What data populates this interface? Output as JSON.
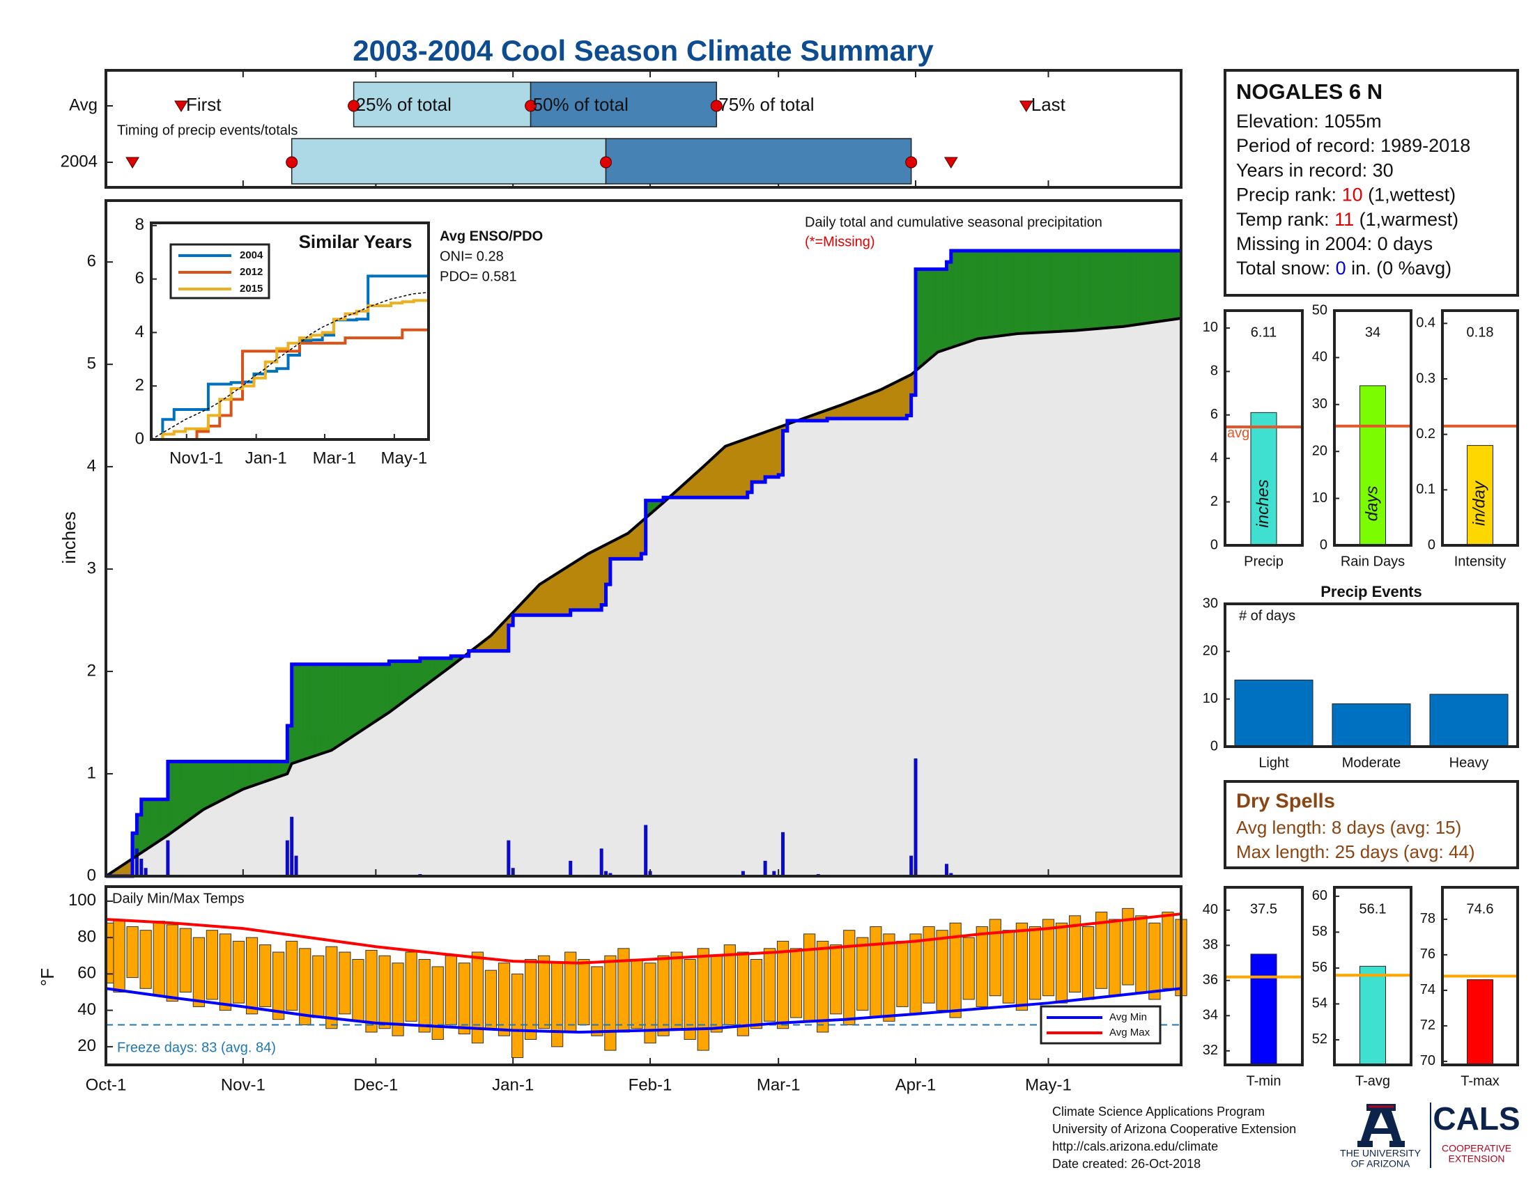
{
  "header": {
    "title": "2003-2004 Cool Season Climate Summary"
  },
  "chart_data": [
    {
      "type": "timing",
      "xlim": [
        0,
        243
      ],
      "note": "Timing of precip events/totals",
      "labels": [
        "First",
        "25% of total",
        "50% of total",
        "75% of total",
        "Last"
      ],
      "rows": [
        {
          "name": "Avg",
          "values": [
            17,
            56,
            96,
            138,
            208
          ]
        },
        {
          "name": "2004",
          "values": [
            6,
            42,
            113,
            182,
            191
          ]
        }
      ],
      "colors": [
        "#add8e6",
        "#4682b4"
      ],
      "marker_color": "#e00000"
    },
    {
      "type": "cumulative",
      "ylabel": "inches",
      "title": "Daily total and cumulative seasonal precipitation",
      "note": "(*=Missing)",
      "note_color": "#e00000",
      "xlim": [
        0,
        243
      ],
      "ylim": [
        0,
        6.6
      ],
      "yticks": [
        0,
        1,
        2,
        3,
        4,
        5,
        6
      ],
      "series": [
        {
          "color": "#0000ff",
          "step": true,
          "x": [
            0,
            6,
            7,
            8,
            14,
            41,
            42,
            64,
            71,
            78,
            82,
            91,
            92,
            105,
            112,
            113,
            114,
            121,
            122,
            126,
            145,
            146,
            149,
            152,
            153,
            154,
            163,
            181,
            182,
            183,
            190,
            191,
            243
          ],
          "values": [
            0,
            0.42,
            0.6,
            0.75,
            1.12,
            1.47,
            2.07,
            2.1,
            2.13,
            2.15,
            2.2,
            2.45,
            2.55,
            2.6,
            2.65,
            2.85,
            3.1,
            3.15,
            3.67,
            3.7,
            3.75,
            3.85,
            3.9,
            3.92,
            4.35,
            4.45,
            4.47,
            4.5,
            4.7,
            5.93,
            6.0,
            6.11,
            6.11
          ]
        },
        {
          "color": "#000000",
          "x": [
            0,
            7,
            14,
            22,
            31,
            41,
            42,
            51,
            64,
            78,
            87,
            98,
            109,
            118,
            126,
            135,
            140,
            153,
            166,
            175,
            182,
            188,
            197,
            206,
            219,
            230,
            243
          ],
          "values": [
            0,
            0.2,
            0.4,
            0.65,
            0.85,
            1.0,
            1.1,
            1.23,
            1.6,
            2.05,
            2.35,
            2.85,
            3.15,
            3.35,
            3.65,
            4.0,
            4.2,
            4.4,
            4.6,
            4.75,
            4.9,
            5.12,
            5.25,
            5.3,
            5.33,
            5.37,
            5.45
          ]
        }
      ],
      "daily": {
        "color": "#0a0ac8",
        "x": [
          6,
          7,
          8,
          9,
          14,
          41,
          42,
          43,
          71,
          91,
          92,
          105,
          112,
          113,
          114,
          122,
          123,
          144,
          149,
          151,
          153,
          161,
          182,
          183,
          190,
          191
        ],
        "values": [
          0.42,
          0.27,
          0.17,
          0.08,
          0.35,
          0.35,
          0.58,
          0.2,
          0.02,
          0.35,
          0.08,
          0.15,
          0.27,
          0.05,
          0.03,
          0.5,
          0.05,
          0.05,
          0.15,
          0.05,
          0.43,
          0.02,
          0.2,
          1.15,
          0.12,
          0.03
        ]
      },
      "fill_colors": {
        "above": "#228b22",
        "below": "#b8860b",
        "base": "#e8e8e8"
      }
    },
    {
      "type": "line",
      "title": "Similar Years",
      "xlim": [
        0,
        243
      ],
      "ylim": [
        0,
        8.1
      ],
      "yticks": [
        0,
        2,
        4,
        6,
        8
      ],
      "xticks": [
        {
          "value": 31,
          "label": "Nov1-1"
        },
        {
          "value": 92,
          "label": "Jan-1"
        },
        {
          "value": 152,
          "label": "Mar-1"
        },
        {
          "value": 213,
          "label": "May-1"
        }
      ],
      "annotations": [
        "Avg ENSO/PDO",
        "ONI= 0.28",
        "PDO= 0.581"
      ],
      "x": [
        0,
        10,
        20,
        30,
        40,
        50,
        60,
        70,
        80,
        90,
        100,
        110,
        120,
        130,
        140,
        150,
        160,
        170,
        180,
        190,
        200,
        210,
        220,
        230,
        243
      ],
      "series": [
        {
          "name": "2004",
          "color": "#0072bd",
          "values": [
            0,
            0.75,
            1.12,
            1.12,
            1.12,
            2.07,
            2.07,
            2.13,
            2.15,
            2.45,
            2.55,
            2.65,
            3.15,
            3.7,
            3.72,
            3.9,
            4.47,
            4.47,
            4.5,
            6.11,
            6.11,
            6.11,
            6.11,
            6.11,
            6.11
          ]
        },
        {
          "name": "2012",
          "color": "#d95319",
          "values": [
            0,
            0,
            0,
            0,
            0.3,
            0.5,
            0.9,
            1.5,
            3.3,
            3.3,
            3.3,
            3.3,
            3.3,
            3.6,
            3.6,
            3.6,
            3.6,
            3.8,
            3.8,
            3.8,
            3.8,
            3.8,
            4.1,
            4.1,
            4.1
          ]
        },
        {
          "name": "2015",
          "color": "#edb120",
          "values": [
            0,
            0.2,
            0.3,
            0.4,
            0.4,
            0.9,
            1.5,
            1.9,
            2.0,
            2.3,
            2.9,
            3.4,
            3.6,
            3.8,
            3.9,
            4.0,
            4.5,
            4.7,
            4.8,
            5.0,
            5.0,
            5.1,
            5.15,
            5.2,
            5.2
          ]
        },
        {
          "color": "#000000",
          "dash": true,
          "values": [
            0,
            0.25,
            0.5,
            0.75,
            0.95,
            1.15,
            1.4,
            1.7,
            2.0,
            2.35,
            2.65,
            3.0,
            3.3,
            3.6,
            3.95,
            4.2,
            4.4,
            4.6,
            4.75,
            4.95,
            5.1,
            5.25,
            5.35,
            5.45,
            5.5
          ]
        }
      ]
    },
    {
      "type": "range-bar",
      "title": "Daily Min/Max Temps",
      "ylabel": "°F",
      "xlim": [
        0,
        243
      ],
      "ylim": [
        10,
        108
      ],
      "yticks": [
        20,
        40,
        60,
        80,
        100
      ],
      "xticks": [
        {
          "value": 0,
          "label": "Oct-1"
        },
        {
          "value": 31,
          "label": "Nov-1"
        },
        {
          "value": 61,
          "label": "Dec-1"
        },
        {
          "value": 92,
          "label": "Jan-1"
        },
        {
          "value": 123,
          "label": "Feb-1"
        },
        {
          "value": 152,
          "label": "Mar-1"
        },
        {
          "value": 183,
          "label": "Apr-1"
        },
        {
          "value": 213,
          "label": "May-1"
        }
      ],
      "bar_color": "#ffa500",
      "x": [
        0,
        3,
        6,
        9,
        12,
        15,
        18,
        21,
        24,
        27,
        30,
        33,
        36,
        39,
        42,
        45,
        48,
        51,
        54,
        57,
        60,
        63,
        66,
        69,
        72,
        75,
        78,
        81,
        84,
        87,
        90,
        93,
        96,
        99,
        102,
        105,
        108,
        111,
        114,
        117,
        120,
        123,
        126,
        129,
        132,
        135,
        138,
        141,
        144,
        147,
        150,
        153,
        156,
        159,
        162,
        165,
        168,
        171,
        174,
        177,
        180,
        183,
        186,
        189,
        192,
        195,
        198,
        201,
        204,
        207,
        210,
        213,
        216,
        219,
        222,
        225,
        228,
        231,
        234,
        237,
        240,
        243
      ],
      "max": [
        88,
        90,
        86,
        84,
        89,
        87,
        85,
        80,
        84,
        82,
        78,
        80,
        76,
        72,
        78,
        74,
        70,
        75,
        72,
        68,
        73,
        70,
        66,
        72,
        68,
        64,
        70,
        66,
        72,
        62,
        66,
        60,
        68,
        70,
        66,
        72,
        68,
        64,
        70,
        74,
        68,
        66,
        70,
        72,
        68,
        74,
        70,
        76,
        72,
        68,
        74,
        78,
        74,
        82,
        78,
        76,
        84,
        80,
        86,
        82,
        78,
        82,
        86,
        84,
        88,
        80,
        86,
        90,
        84,
        88,
        86,
        90,
        88,
        92,
        86,
        94,
        90,
        96,
        92,
        88,
        94,
        90
      ],
      "min": [
        55,
        50,
        58,
        52,
        48,
        45,
        50,
        42,
        46,
        40,
        44,
        38,
        42,
        35,
        40,
        32,
        36,
        30,
        38,
        34,
        28,
        30,
        26,
        34,
        28,
        24,
        32,
        27,
        22,
        30,
        26,
        14,
        24,
        30,
        20,
        28,
        32,
        26,
        18,
        28,
        30,
        22,
        26,
        30,
        24,
        18,
        28,
        32,
        26,
        30,
        34,
        30,
        36,
        34,
        28,
        38,
        32,
        40,
        36,
        34,
        42,
        38,
        44,
        40,
        36,
        46,
        42,
        48,
        44,
        40,
        46,
        48,
        44,
        50,
        46,
        52,
        48,
        54,
        50,
        46,
        52,
        48
      ],
      "series": [
        {
          "name": "Avg Min",
          "color": "#0000ff",
          "x": [
            0,
            15,
            31,
            46,
            61,
            76,
            92,
            107,
            123,
            137,
            152,
            167,
            183,
            198,
            213,
            228,
            243
          ],
          "values": [
            52,
            47,
            42,
            37,
            33,
            31,
            29,
            28,
            29,
            30,
            33,
            35,
            38,
            41,
            44,
            48,
            52
          ]
        },
        {
          "name": "Avg Max",
          "color": "#ff0000",
          "x": [
            0,
            15,
            31,
            46,
            61,
            76,
            92,
            107,
            123,
            137,
            152,
            167,
            183,
            198,
            213,
            228,
            243
          ],
          "values": [
            90,
            88,
            85,
            80,
            75,
            71,
            67,
            66,
            68,
            70,
            72,
            75,
            78,
            82,
            85,
            89,
            93
          ]
        }
      ],
      "freeze": {
        "value": 32,
        "label": "Freeze days: 83 (avg. 84)",
        "color": "#1f77b4"
      }
    },
    {
      "type": "bar",
      "categories": [
        "Precip"
      ],
      "values": [
        6.11
      ],
      "bar_label": "inches",
      "avg": 5.45,
      "avg_label": "avg",
      "color": "#40e0d0",
      "avg_color": "#e2582a",
      "ylim": [
        0,
        10.8
      ],
      "yticks": [
        0,
        2,
        4,
        6,
        8,
        10
      ]
    },
    {
      "type": "bar",
      "categories": [
        "Rain Days"
      ],
      "values": [
        34
      ],
      "bar_label": "days",
      "avg": 25.4,
      "color": "#7cfc00",
      "avg_color": "#e2582a",
      "ylim": [
        0,
        50
      ],
      "yticks": [
        0,
        10,
        20,
        30,
        40,
        50
      ]
    },
    {
      "type": "bar",
      "categories": [
        "Intensity"
      ],
      "values": [
        0.18
      ],
      "bar_label": "in/day",
      "avg": 0.215,
      "color": "#ffd700",
      "avg_color": "#e2582a",
      "ylim": [
        0,
        0.423
      ],
      "yticks": [
        0,
        0.1,
        0.2,
        0.3,
        0.4
      ]
    },
    {
      "type": "bar",
      "title": "Precip Events",
      "ylabel": "# of days",
      "categories": [
        "Light",
        "Moderate",
        "Heavy"
      ],
      "values": [
        14,
        9,
        11
      ],
      "color": "#0070c0",
      "ylim": [
        0,
        30
      ],
      "yticks": [
        0,
        10,
        20,
        30
      ]
    },
    {
      "type": "bar",
      "categories": [
        "T-min"
      ],
      "values": [
        37.5
      ],
      "avg": 36.2,
      "color": "#0000ff",
      "avg_color": "#ffa500",
      "ylim": [
        31.2,
        41.3
      ],
      "yticks": [
        32,
        34,
        36,
        38,
        40
      ]
    },
    {
      "type": "bar",
      "categories": [
        "T-avg"
      ],
      "values": [
        56.1
      ],
      "avg": 55.6,
      "color": "#40e0d0",
      "avg_color": "#ffa500",
      "ylim": [
        50.6,
        60.5
      ],
      "yticks": [
        52,
        54,
        56,
        58,
        60
      ]
    },
    {
      "type": "bar",
      "categories": [
        "T-max"
      ],
      "values": [
        74.6
      ],
      "avg": 74.8,
      "color": "#ff0000",
      "avg_color": "#ffa500",
      "ylim": [
        69.8,
        79.8
      ],
      "yticks": [
        70,
        72,
        74,
        76,
        78
      ]
    }
  ],
  "station": {
    "title": "NOGALES 6 N",
    "lines": [
      {
        "parts": [
          "Elevation: 1055m"
        ]
      },
      {
        "parts": [
          "Period of record: 1989-2018"
        ]
      },
      {
        "parts": [
          "Years in record: 30"
        ]
      },
      {
        "parts": [
          "Precip rank: ",
          "10",
          " (1,wettest)"
        ],
        "highlight": "#e00000"
      },
      {
        "parts": [
          "Temp rank: ",
          "11",
          " (1,warmest)"
        ],
        "highlight": "#e00000"
      },
      {
        "parts": [
          "Missing in 2004: 0 days"
        ]
      },
      {
        "parts": [
          "Total snow: ",
          "0",
          " in. (0 %avg)"
        ],
        "highlight": "#0000cc"
      }
    ]
  },
  "dry_spells": {
    "title": "Dry Spells",
    "color": "#8b4513",
    "lines": [
      "Avg length: 8 days (avg: 15)",
      "Max length: 25 days (avg: 44)"
    ]
  },
  "footer": {
    "lines": [
      "Climate Science Applications Program",
      "University of Arizona Cooperative Extension",
      "http://cals.arizona.edu/climate",
      "Date created: 26-Oct-2018"
    ],
    "ua": [
      "THE UNIVERSITY",
      "OF ARIZONA"
    ],
    "cals": "CALS",
    "extension": [
      "COOPERATIVE",
      "EXTENSION"
    ]
  }
}
